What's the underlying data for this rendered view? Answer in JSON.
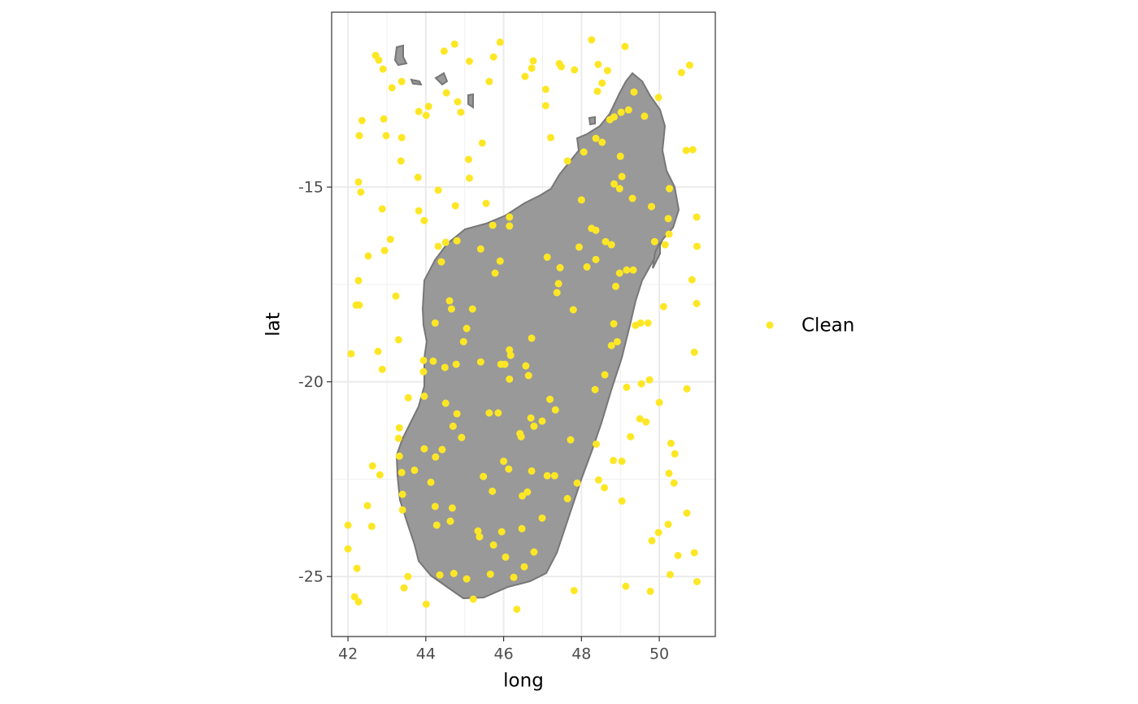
{
  "chart_data": {
    "type": "scatter",
    "xlabel": "long",
    "ylabel": "lat",
    "xlim": [
      41.58,
      51.44
    ],
    "ylim": [
      -26.54,
      -10.51
    ],
    "xticks": [
      42,
      44,
      46,
      48,
      50
    ],
    "yticks": [
      -25,
      -20,
      -15
    ],
    "grid": true,
    "legend": "right",
    "series": [
      {
        "name": "Clean",
        "color": "#FDE725",
        "x": [
          42.71,
          42.79,
          42.9,
          43.13,
          43.38,
          42.36,
          42.29,
          42.92,
          42.98,
          43.38,
          43.36,
          43.82,
          44.07,
          44.01,
          44.47,
          44.74,
          45.12,
          44.53,
          44.82,
          44.9,
          45.63,
          45.74,
          45.91,
          46.55,
          46.72,
          46.76,
          47.08,
          47.08,
          47.43,
          47.48,
          47.82,
          48.26,
          48.43,
          48.67,
          48.53,
          48.41,
          49.12,
          49.35,
          49.98,
          50.57,
          50.78,
          49.21,
          49.02,
          48.84,
          48.73,
          49.62,
          47.21,
          47.64,
          48.06,
          48.37,
          48.53,
          49.0,
          49.04,
          48.84,
          48.98,
          49.31,
          50.26,
          50.69,
          50.86,
          50.96,
          50.23,
          50.25,
          50.97,
          50.15,
          49.88,
          49.8,
          48.0,
          47.94,
          48.26,
          48.37,
          48.62,
          48.77,
          48.37,
          48.14,
          48.98,
          49.16,
          49.33,
          48.88,
          50.84,
          50.96,
          50.11,
          49.71,
          49.52,
          49.39,
          48.83,
          48.92,
          48.77,
          50.9,
          49.75,
          49.54,
          49.16,
          48.35,
          48.6,
          50.0,
          50.71,
          49.5,
          49.66,
          49.26,
          50.3,
          50.4,
          48.82,
          49.04,
          50.25,
          50.38,
          48.38,
          48.44,
          48.59,
          49.04,
          50.71,
          50.23,
          49.98,
          49.81,
          50.48,
          50.9,
          50.28,
          50.97,
          49.14,
          49.77,
          47.81,
          46.34,
          45.22,
          44.01,
          42.27,
          42.17,
          43.44,
          43.54,
          42.23,
          42.0,
          42.0,
          42.61,
          42.5,
          42.63,
          42.82,
          43.4,
          43.4,
          43.38,
          43.32,
          43.3,
          43.32,
          43.71,
          43.96,
          44.13,
          44.42,
          44.25,
          44.7,
          44.8,
          44.51,
          44.92,
          44.24,
          44.28,
          44.68,
          44.63,
          44.36,
          44.72,
          45.05,
          45.34,
          45.38,
          45.66,
          45.74,
          46.05,
          46.26,
          46.53,
          46.78,
          46.47,
          45.95,
          46.99,
          47.64,
          47.89,
          45.48,
          45.71,
          46.0,
          46.13,
          46.48,
          46.61,
          46.72,
          47.12,
          47.31,
          47.72,
          46.42,
          46.45,
          46.7,
          46.78,
          46.99,
          47.19,
          47.33,
          45.63,
          45.86,
          46.15,
          46.57,
          46.64,
          45.93,
          46.03,
          46.15,
          46.18,
          46.72,
          45.41,
          44.97,
          45.05,
          44.78,
          44.49,
          44.19,
          43.94,
          43.94,
          43.96,
          43.55,
          44.24,
          44.61,
          44.66,
          45.2,
          47.79,
          44.4,
          44.32,
          44.51,
          44.8,
          45.41,
          45.78,
          45.91,
          45.72,
          46.15,
          46.15,
          47.12,
          47.45,
          47.41,
          47.37,
          45.55,
          44.76,
          44.32,
          43.96,
          43.82,
          43.8,
          45.12,
          45.1,
          45.45,
          42.27,
          42.33,
          42.88,
          43.09,
          42.94,
          42.52,
          42.27,
          42.21,
          42.29,
          43.23,
          43.3,
          42.08,
          42.77,
          42.88
        ],
        "values": [
          -11.62,
          -11.74,
          -11.97,
          -12.45,
          -12.29,
          -13.29,
          -13.68,
          -13.25,
          -13.68,
          -13.73,
          -14.33,
          -13.06,
          -12.93,
          -13.16,
          -11.51,
          -11.33,
          -11.77,
          -12.58,
          -12.81,
          -13.08,
          -12.29,
          -11.66,
          -11.28,
          -12.16,
          -11.95,
          -11.76,
          -12.49,
          -12.91,
          -11.83,
          -11.91,
          -11.99,
          -11.22,
          -11.85,
          -12.01,
          -12.33,
          -12.54,
          -11.39,
          -12.56,
          -12.7,
          -12.06,
          -11.87,
          -13.02,
          -13.08,
          -13.2,
          -13.27,
          -13.18,
          -13.73,
          -14.33,
          -14.1,
          -13.75,
          -13.85,
          -14.21,
          -14.73,
          -14.92,
          -15.04,
          -15.29,
          -15.04,
          -14.06,
          -14.04,
          -15.77,
          -15.81,
          -16.21,
          -16.52,
          -16.48,
          -16.4,
          -15.5,
          -15.33,
          -16.54,
          -16.06,
          -16.11,
          -16.4,
          -16.48,
          -16.86,
          -17.05,
          -17.21,
          -17.13,
          -17.13,
          -17.55,
          -17.38,
          -17.99,
          -18.07,
          -18.49,
          -18.49,
          -18.55,
          -18.51,
          -18.97,
          -19.07,
          -19.24,
          -19.95,
          -20.05,
          -20.14,
          -20.2,
          -19.82,
          -20.53,
          -20.18,
          -20.95,
          -21.03,
          -21.41,
          -21.58,
          -21.85,
          -22.02,
          -22.04,
          -22.35,
          -22.6,
          -21.6,
          -22.52,
          -22.72,
          -23.06,
          -23.37,
          -23.66,
          -23.87,
          -24.08,
          -24.46,
          -24.39,
          -24.95,
          -25.13,
          -25.25,
          -25.38,
          -25.36,
          -25.84,
          -25.58,
          -25.71,
          -25.65,
          -25.52,
          -25.29,
          -25.0,
          -24.79,
          -24.29,
          -23.68,
          -23.71,
          -23.18,
          -22.16,
          -22.39,
          -23.29,
          -22.89,
          -22.33,
          -21.91,
          -21.45,
          -21.18,
          -22.27,
          -21.72,
          -22.58,
          -21.74,
          -21.93,
          -21.14,
          -20.82,
          -20.55,
          -21.43,
          -23.2,
          -23.68,
          -23.24,
          -23.58,
          -24.96,
          -24.92,
          -25.06,
          -23.83,
          -23.98,
          -24.94,
          -24.19,
          -24.5,
          -25.02,
          -24.75,
          -24.37,
          -23.77,
          -23.85,
          -23.5,
          -23.0,
          -22.6,
          -22.43,
          -22.81,
          -22.04,
          -22.24,
          -22.93,
          -22.83,
          -22.29,
          -22.41,
          -22.41,
          -21.49,
          -21.33,
          -21.41,
          -20.93,
          -21.14,
          -21.01,
          -20.45,
          -20.72,
          -20.8,
          -20.8,
          -19.93,
          -19.59,
          -19.84,
          -19.55,
          -19.55,
          -19.18,
          -19.32,
          -18.88,
          -19.49,
          -18.97,
          -18.63,
          -19.55,
          -19.63,
          -19.47,
          -19.45,
          -19.74,
          -20.37,
          -20.41,
          -18.49,
          -17.92,
          -18.13,
          -18.13,
          -18.15,
          -16.92,
          -16.52,
          -16.42,
          -16.38,
          -16.59,
          -17.21,
          -16.9,
          -15.98,
          -15.77,
          -16.0,
          -16.8,
          -17.07,
          -17.48,
          -17.71,
          -15.42,
          -15.48,
          -15.08,
          -15.86,
          -15.61,
          -14.75,
          -14.77,
          -14.29,
          -13.87,
          -14.87,
          -15.13,
          -15.56,
          -16.34,
          -16.63,
          -16.77,
          -17.4,
          -18.03,
          -18.03,
          -17.8,
          -18.92,
          -19.28,
          -19.22,
          -19.68
        ]
      }
    ]
  }
}
